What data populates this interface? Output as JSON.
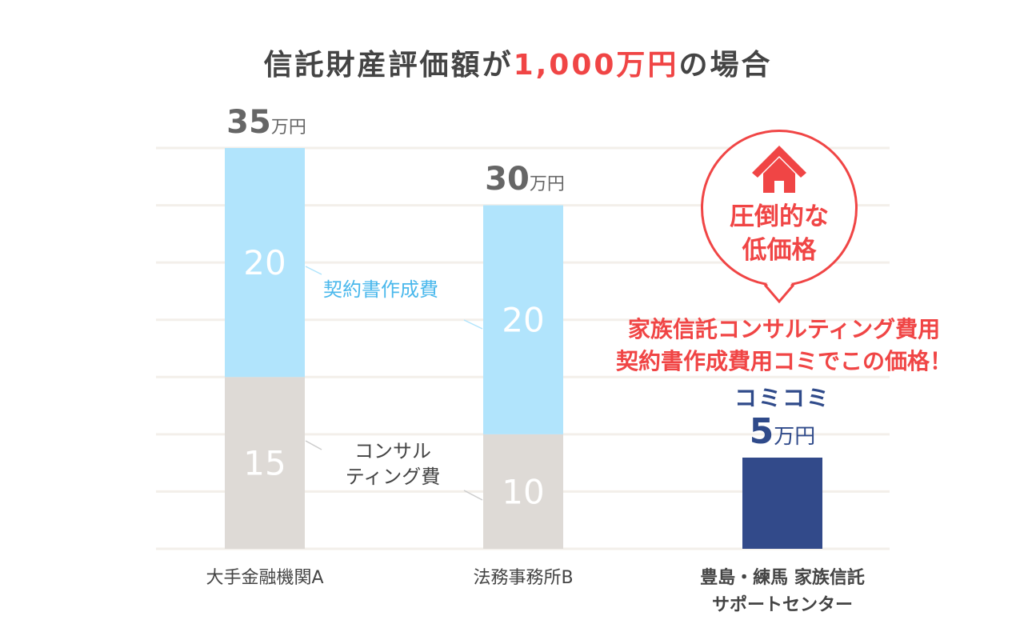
{
  "title": {
    "prefix": "信託財産評価額が",
    "highlight": "1,000万円",
    "suffix": "の場合"
  },
  "colors": {
    "contract": "#b1e4fc",
    "consulting": "#dedad6",
    "ours": "#324a8a",
    "accent": "#f04545",
    "grid": "#f3efea",
    "label_blue": "#4ab8ec"
  },
  "chart_data": {
    "type": "bar",
    "stacked": true,
    "categories": [
      "大手金融機関A",
      "法務事務所B",
      "豊島・練馬 家族信託\nサポートセンター"
    ],
    "unit": "万円",
    "series": [
      {
        "name": "コンサルティング費",
        "values": [
          15,
          10,
          null
        ]
      },
      {
        "name": "契約書作成費",
        "values": [
          20,
          20,
          null
        ]
      },
      {
        "values": [
          null,
          null,
          5
        ]
      }
    ],
    "totals": [
      "35",
      "30",
      "5"
    ],
    "ylim": [
      0,
      35
    ],
    "grid": true
  },
  "labels": {
    "contract": "契約書作成費",
    "consulting_l1": "コンサル",
    "consulting_l2": "ティング費"
  },
  "bubble": {
    "icon": "house-icon",
    "line1": "圧倒的な",
    "line2": "低価格"
  },
  "promo": {
    "line1": "家族信託コンサルティング費用",
    "line2": "契約書作成費用コミでこの価格！"
  },
  "komikomi": "コミコミ",
  "categories_display": [
    [
      "大手金融機関A"
    ],
    [
      "法務事務所B"
    ],
    [
      "豊島・練馬 家族信託",
      "サポートセンター"
    ]
  ]
}
